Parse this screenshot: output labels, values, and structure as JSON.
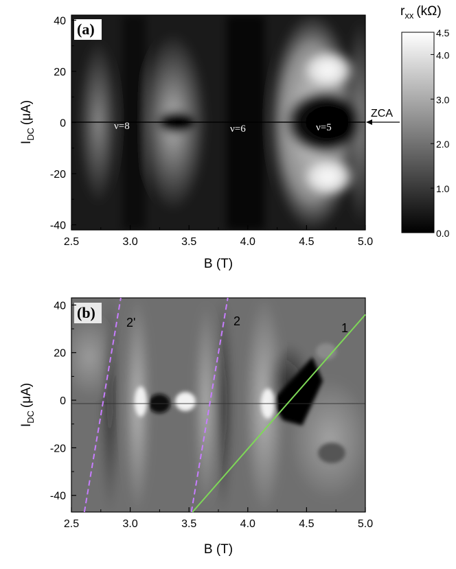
{
  "chart_data": [
    {
      "type": "heatmap",
      "panel_label": "(a)",
      "xlabel": "B (T)",
      "ylabel": "I",
      "ylabel_sub": "DC",
      "ylabel_unit": "(μA)",
      "xlim": [
        2.5,
        5.0
      ],
      "ylim": [
        -42,
        42
      ],
      "x_ticks": [
        "2.5",
        "3.0",
        "3.5",
        "4.0",
        "4.5",
        "5.0"
      ],
      "y_ticks": [
        "40",
        "20",
        "0",
        "-20",
        "-40"
      ],
      "colorbar": {
        "label": "r",
        "label_sub": "xx",
        "label_unit": "(kΩ)",
        "range": [
          0.0,
          4.5
        ],
        "ticks": [
          "4.5",
          "4.0",
          "3.0",
          "2.0",
          "1.0",
          "0.0"
        ]
      },
      "annotations": [
        {
          "text": "ν=8",
          "B": 2.95,
          "I": 0
        },
        {
          "text": "ν=6",
          "B": 3.95,
          "I": 0
        },
        {
          "text": "ν=5",
          "B": 4.7,
          "I": 0
        }
      ],
      "arrow_label": "ZCA"
    },
    {
      "type": "heatmap",
      "panel_label": "(b)",
      "xlabel": "B (T)",
      "ylabel": "I",
      "ylabel_sub": "DC",
      "ylabel_unit": "(μA)",
      "xlim": [
        2.5,
        5.0
      ],
      "ylim": [
        -47,
        43
      ],
      "x_ticks": [
        "2.5",
        "3.0",
        "3.5",
        "4.0",
        "4.5",
        "5.0"
      ],
      "y_ticks": [
        "40",
        "20",
        "0",
        "-20",
        "-40"
      ],
      "lines": [
        {
          "label": "2'",
          "style": "dashed",
          "color": "#c77dff",
          "x": [
            2.61,
            2.92
          ],
          "y": [
            -47,
            43
          ]
        },
        {
          "label": "2",
          "style": "dashed",
          "color": "#c77dff",
          "x": [
            3.52,
            3.83
          ],
          "y": [
            -47,
            43
          ]
        },
        {
          "label": "1",
          "style": "solid",
          "color": "#7ed957",
          "x": [
            3.53,
            5.0
          ],
          "y": [
            -47,
            36
          ]
        }
      ]
    }
  ]
}
